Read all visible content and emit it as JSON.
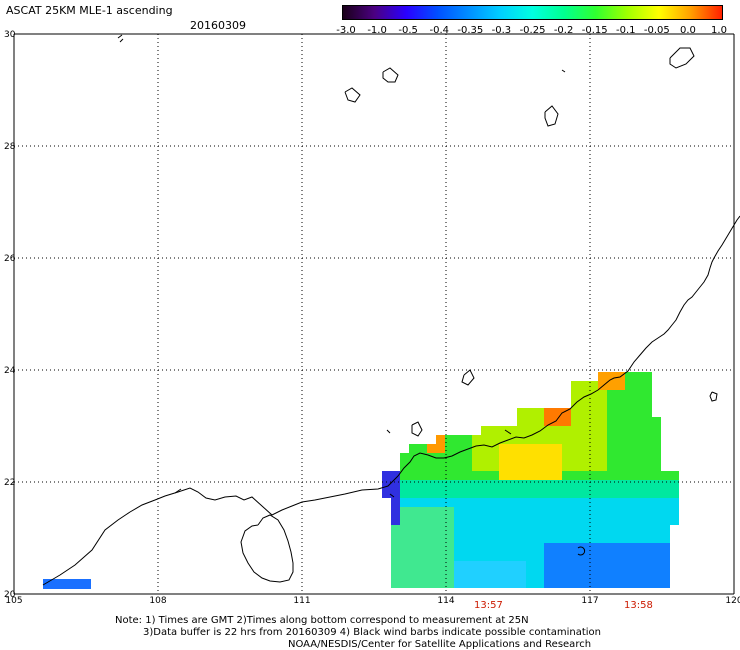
{
  "header": {
    "title": "ASCAT 25KM MLE-1 ascending",
    "date": "20160309"
  },
  "colorbar": {
    "labels": [
      "-3.0",
      "-1.0",
      "-0.5",
      "-0.4",
      "-0.35",
      "-0.3",
      "-0.25",
      "-0.2",
      "-0.15",
      "-0.1",
      "-0.05",
      "0.0",
      "1.0"
    ],
    "colors": [
      "#1a0019",
      "#4b0082",
      "#2a00ff",
      "#0050ff",
      "#0090ff",
      "#00d0ff",
      "#00ffe0",
      "#00ff90",
      "#30ff30",
      "#a0ff00",
      "#ffff00",
      "#ffa000",
      "#ff2000"
    ]
  },
  "map": {
    "lat_labels": [
      "30",
      "28",
      "26",
      "24",
      "22",
      "20"
    ],
    "lon_labels": [
      "105",
      "108",
      "111",
      "114",
      "117",
      "120"
    ],
    "lat_range": [
      20,
      30
    ],
    "lon_range": [
      105,
      120
    ],
    "grid": "dotted"
  },
  "times": {
    "t1": "13:57",
    "t2": "13:58"
  },
  "notes": {
    "line1": "Note: 1) Times are GMT 2)Times along bottom correspond to measurement at 25N",
    "line2": "3)Data buffer is 22 hrs from 20160309 4) Black wind barbs indicate possible contamination",
    "line3": "NOAA/NESDIS/Center for Satellite Applications and Research"
  }
}
